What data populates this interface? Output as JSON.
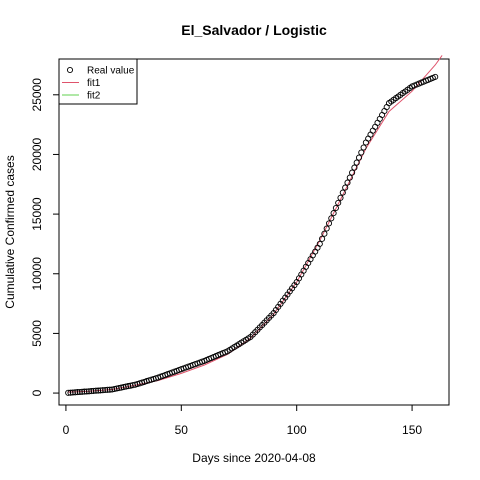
{
  "chart_data": {
    "type": "scatter",
    "title": "El_Salvador / Logistic",
    "xlabel": "Days since 2020-04-08",
    "ylabel": "Cumulative Confirmed cases",
    "xlim": [
      -3,
      166
    ],
    "ylim": [
      -1000,
      28000
    ],
    "xticks": [
      0,
      50,
      100,
      150
    ],
    "yticks": [
      0,
      5000,
      10000,
      15000,
      20000,
      25000
    ],
    "legend_position": "top-left",
    "legend": [
      {
        "label": "Real value",
        "style": "circle",
        "color": "#000000"
      },
      {
        "label": "fit1",
        "style": "line",
        "color": "#DF536B"
      },
      {
        "label": "fit2",
        "style": "line",
        "color": "#61D04F"
      }
    ],
    "series": [
      {
        "name": "Real value",
        "style": "points",
        "color": "#000000",
        "x": [
          1,
          10,
          20,
          30,
          40,
          50,
          60,
          70,
          80,
          90,
          100,
          110,
          120,
          130,
          140,
          150,
          160
        ],
        "y": [
          20,
          150,
          300,
          700,
          1300,
          2000,
          2700,
          3500,
          4700,
          6700,
          9300,
          12500,
          16800,
          21000,
          24300,
          25700,
          26500
        ]
      },
      {
        "name": "fit1",
        "style": "line",
        "color": "#DF536B",
        "x": [
          1,
          10,
          20,
          30,
          40,
          50,
          60,
          70,
          80,
          90,
          100,
          110,
          120,
          130,
          140,
          150,
          160,
          163
        ],
        "y": [
          80,
          150,
          300,
          650,
          1050,
          1650,
          2350,
          3250,
          4600,
          6600,
          9300,
          12800,
          16600,
          20500,
          23600,
          25300,
          27500,
          28300
        ]
      }
    ]
  }
}
